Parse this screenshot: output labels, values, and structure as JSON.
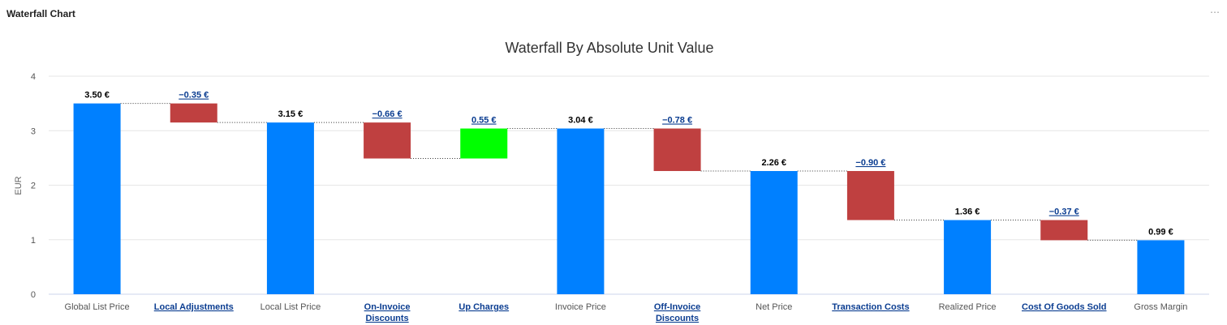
{
  "panel": {
    "title": "Waterfall Chart",
    "menu_icon": "more-horizontal-icon"
  },
  "colors": {
    "total": "#0080ff",
    "decrease": "#bf4040",
    "increase": "#00ff00",
    "link": "#0b3d91"
  },
  "chart_data": {
    "type": "bar",
    "subtype": "waterfall",
    "title": "Waterfall By Absolute Unit Value",
    "xlabel": "",
    "ylabel": "EUR",
    "ylim": [
      0,
      4
    ],
    "yticks": [
      "0",
      "1",
      "2",
      "3",
      "4"
    ],
    "grid": true,
    "connectors": "dotted",
    "bars": [
      {
        "category": [
          "Global List Price"
        ],
        "kind": "total",
        "start": 0,
        "end": 3.5,
        "label": "3.50 €",
        "link": false
      },
      {
        "category": [
          "Local Adjustments"
        ],
        "kind": "decrease",
        "start": 3.5,
        "end": 3.15,
        "label": "−0.35 €",
        "link": true
      },
      {
        "category": [
          "Local List Price"
        ],
        "kind": "total",
        "start": 0,
        "end": 3.15,
        "label": "3.15 €",
        "link": false
      },
      {
        "category": [
          "On-Invoice",
          "Discounts"
        ],
        "kind": "decrease",
        "start": 3.15,
        "end": 2.49,
        "label": "−0.66 €",
        "link": true
      },
      {
        "category": [
          "Up Charges"
        ],
        "kind": "increase",
        "start": 2.49,
        "end": 3.04,
        "label": "0.55 €",
        "link": true
      },
      {
        "category": [
          "Invoice Price"
        ],
        "kind": "total",
        "start": 0,
        "end": 3.04,
        "label": "3.04 €",
        "link": false
      },
      {
        "category": [
          "Off-Invoice",
          "Discounts"
        ],
        "kind": "decrease",
        "start": 3.04,
        "end": 2.26,
        "label": "−0.78 €",
        "link": true
      },
      {
        "category": [
          "Net Price"
        ],
        "kind": "total",
        "start": 0,
        "end": 2.26,
        "label": "2.26 €",
        "link": false
      },
      {
        "category": [
          "Transaction Costs"
        ],
        "kind": "decrease",
        "start": 2.26,
        "end": 1.36,
        "label": "−0.90 €",
        "link": true
      },
      {
        "category": [
          "Realized Price"
        ],
        "kind": "total",
        "start": 0,
        "end": 1.36,
        "label": "1.36 €",
        "link": false
      },
      {
        "category": [
          "Cost Of Goods Sold"
        ],
        "kind": "decrease",
        "start": 1.36,
        "end": 0.99,
        "label": "−0.37 €",
        "link": true
      },
      {
        "category": [
          "Gross Margin"
        ],
        "kind": "total",
        "start": 0,
        "end": 0.99,
        "label": "0.99 €",
        "link": false
      }
    ]
  }
}
